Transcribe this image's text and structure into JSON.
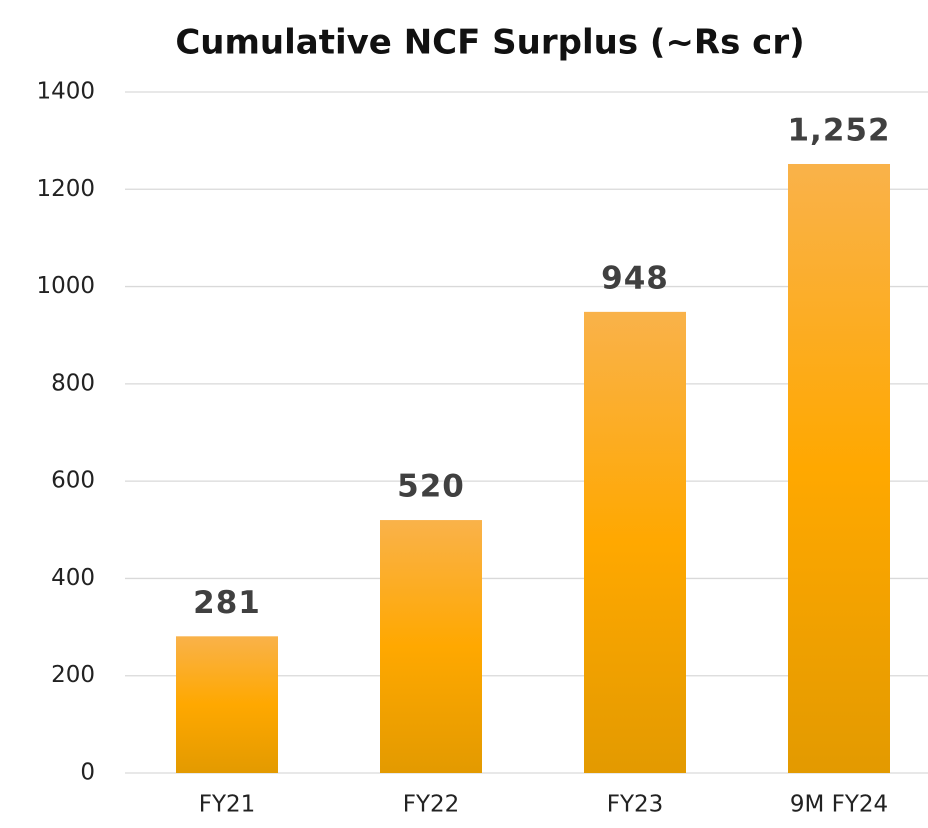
{
  "chart_data": {
    "type": "bar",
    "title": "Cumulative NCF Surplus (~Rs cr)",
    "categories": [
      "FY21",
      "FY22",
      "FY23",
      "9M FY24"
    ],
    "values": [
      281,
      520,
      948,
      1252
    ],
    "value_labels": [
      "281",
      "520",
      "948",
      "1,252"
    ],
    "color": "#ffa800",
    "ylim": [
      0,
      1400
    ],
    "yticks": [
      0,
      200,
      400,
      600,
      800,
      1000,
      1200,
      1400
    ],
    "grid": true
  }
}
